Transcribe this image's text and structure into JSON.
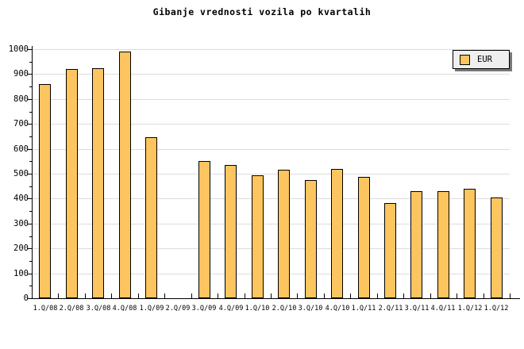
{
  "title": "Gibanje vrednosti vozila po kvartalih",
  "legend": {
    "label": "EUR",
    "position": "top-right"
  },
  "colors": {
    "background": "#ffffff",
    "bar_fill": "#fcc55f",
    "bar_border": "#000000",
    "grid": "#dcdcdc",
    "axis": "#000000",
    "legend_bg": "#efefef",
    "legend_shadow": "#777777",
    "text": "#000000"
  },
  "chart_data": {
    "type": "bar",
    "title": "Gibanje vrednosti vozila po kvartalih",
    "categories": [
      "1.Q/08",
      "2.Q/08",
      "3.Q/08",
      "4.Q/08",
      "1.Q/09",
      "2.Q/09",
      "3.Q/09",
      "4.Q/09",
      "1.Q/10",
      "2.Q/10",
      "3.Q/10",
      "4.Q/10",
      "1.Q/11",
      "2.Q/11",
      "3.Q/11",
      "4.Q/11",
      "1.Q/12",
      "1.Q/12"
    ],
    "series": [
      {
        "name": "EUR",
        "values": [
          860,
          920,
          925,
          990,
          645,
          null,
          552,
          535,
          494,
          516,
          474,
          520,
          488,
          382,
          430,
          430,
          440,
          404
        ]
      }
    ],
    "xlabel": "",
    "ylabel": "",
    "ylim": [
      0,
      1000
    ],
    "ytick_major_interval": 100,
    "ytick_minor_interval": 50,
    "ytick_labels": [
      "0",
      "100",
      "200",
      "300",
      "400",
      "500",
      "600",
      "700",
      "800",
      "900",
      "1000"
    ],
    "grid": "horizontal-major",
    "legend_position": "top-right"
  }
}
